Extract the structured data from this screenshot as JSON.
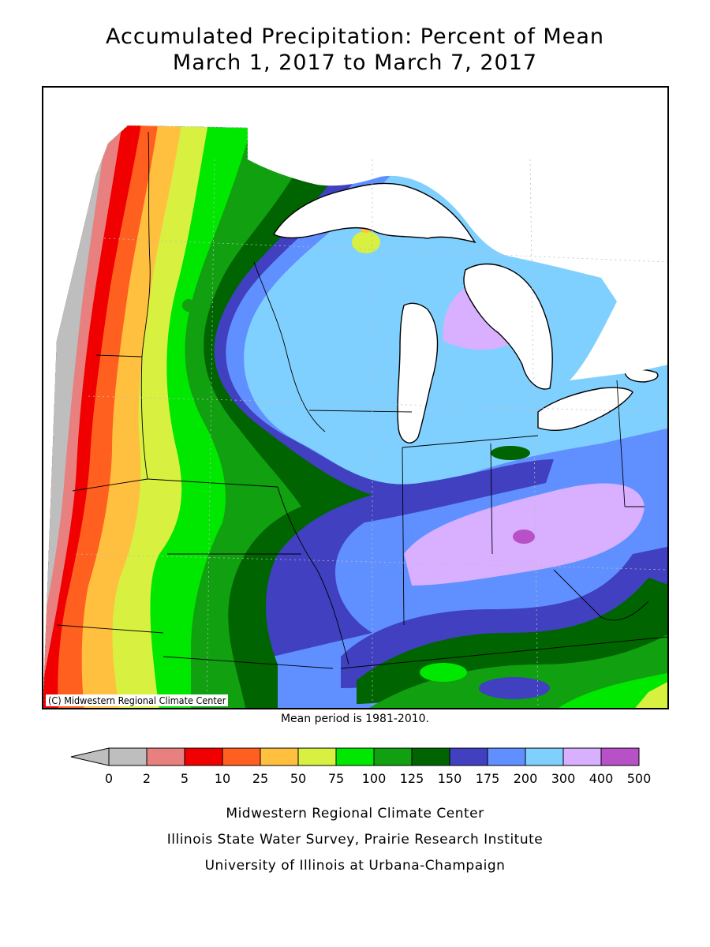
{
  "title_line1": "Accumulated Precipitation: Percent of Mean",
  "title_line2": "March 1, 2017 to March 7, 2017",
  "copyright": "(C) Midwestern Regional Climate Center",
  "mean_period": "Mean period is 1981-2010.",
  "legend": {
    "ticks": [
      "0",
      "2",
      "5",
      "10",
      "25",
      "50",
      "75",
      "100",
      "125",
      "150",
      "175",
      "200",
      "300",
      "400",
      "500"
    ],
    "colors": {
      "below_0": "#bebebe",
      "0-2": "#bebebe",
      "2-5": "#e88080",
      "5-10": "#f00000",
      "10-25": "#ff6020",
      "25-50": "#ffc040",
      "50-75": "#d8f040",
      "75-100": "#00e800",
      "100-125": "#10a010",
      "125-150": "#006400",
      "150-175": "#4040c0",
      "175-200": "#6090ff",
      "200-300": "#80d0ff",
      "300-400": "#d8b0ff",
      "400-500": "#b850c8"
    }
  },
  "credits": [
    "Midwestern Regional Climate Center",
    "Illinois State Water Survey, Prairie Research Institute",
    "University of Illinois at Urbana-Champaign"
  ]
}
